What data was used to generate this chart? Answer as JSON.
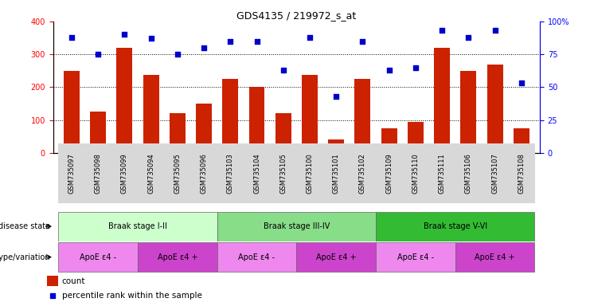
{
  "title": "GDS4135 / 219972_s_at",
  "samples": [
    "GSM735097",
    "GSM735098",
    "GSM735099",
    "GSM735094",
    "GSM735095",
    "GSM735096",
    "GSM735103",
    "GSM735104",
    "GSM735105",
    "GSM735100",
    "GSM735101",
    "GSM735102",
    "GSM735109",
    "GSM735110",
    "GSM735111",
    "GSM735106",
    "GSM735107",
    "GSM735108"
  ],
  "counts": [
    250,
    125,
    320,
    238,
    120,
    150,
    225,
    200,
    120,
    238,
    40,
    225,
    75,
    95,
    320,
    250,
    270,
    75
  ],
  "percentiles": [
    88,
    75,
    90,
    87,
    75,
    80,
    85,
    85,
    63,
    88,
    43,
    85,
    63,
    65,
    93,
    88,
    93,
    53
  ],
  "left_ylim": [
    0,
    400
  ],
  "right_ylim": [
    0,
    100
  ],
  "left_yticks": [
    0,
    100,
    200,
    300,
    400
  ],
  "right_yticks": [
    0,
    25,
    50,
    75,
    100
  ],
  "right_yticklabels": [
    "0",
    "25",
    "50",
    "75",
    "100%"
  ],
  "bar_color": "#cc2200",
  "dot_color": "#0000cc",
  "braak_groups": [
    {
      "label": "Braak stage I-II",
      "start": 0,
      "end": 6,
      "color": "#ccffcc"
    },
    {
      "label": "Braak stage III-IV",
      "start": 6,
      "end": 12,
      "color": "#88dd88"
    },
    {
      "label": "Braak stage V-VI",
      "start": 12,
      "end": 18,
      "color": "#33bb33"
    }
  ],
  "genotype_groups": [
    {
      "label": "ApoE ε4 -",
      "start": 0,
      "end": 3,
      "color": "#ee88ee"
    },
    {
      "label": "ApoE ε4 +",
      "start": 3,
      "end": 6,
      "color": "#cc44cc"
    },
    {
      "label": "ApoE ε4 -",
      "start": 6,
      "end": 9,
      "color": "#ee88ee"
    },
    {
      "label": "ApoE ε4 +",
      "start": 9,
      "end": 12,
      "color": "#cc44cc"
    },
    {
      "label": "ApoE ε4 -",
      "start": 12,
      "end": 15,
      "color": "#ee88ee"
    },
    {
      "label": "ApoE ε4 +",
      "start": 15,
      "end": 18,
      "color": "#cc44cc"
    }
  ],
  "disease_state_label": "disease state",
  "genotype_label": "genotype/variation",
  "legend_count_label": "count",
  "legend_pct_label": "percentile rank within the sample",
  "bar_width": 0.6,
  "xtick_bg": "#d8d8d8"
}
